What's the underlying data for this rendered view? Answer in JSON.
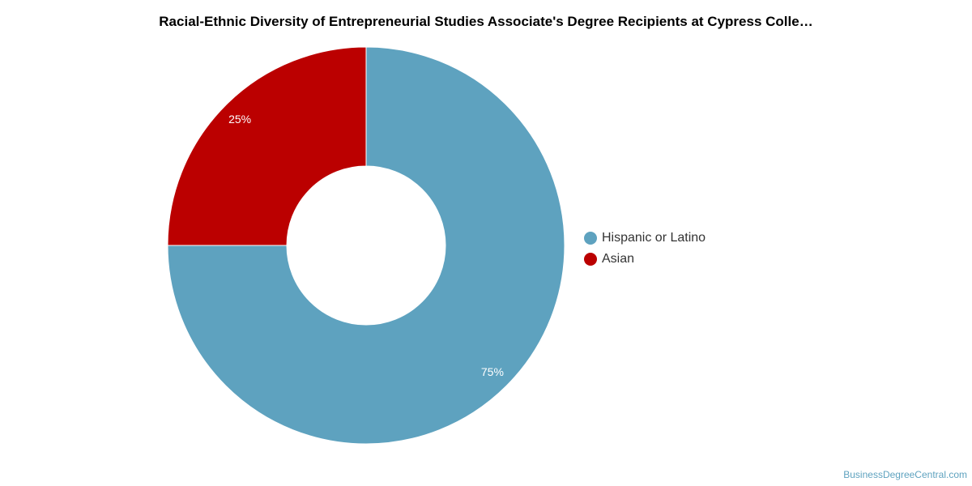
{
  "chart_data": {
    "type": "pie",
    "title": "Racial-Ethnic Diversity of Entrepreneurial Studies Associate's Degree Recipients at Cypress Colle…",
    "donut": true,
    "slices": [
      {
        "name": "Hispanic or Latino",
        "value": 75,
        "label": "75%",
        "color": "#5ea2bf"
      },
      {
        "name": "Asian",
        "value": 25,
        "label": "25%",
        "color": "#bb0000"
      }
    ],
    "legend_position": "right"
  },
  "watermark": "BusinessDegreeCentral.com"
}
